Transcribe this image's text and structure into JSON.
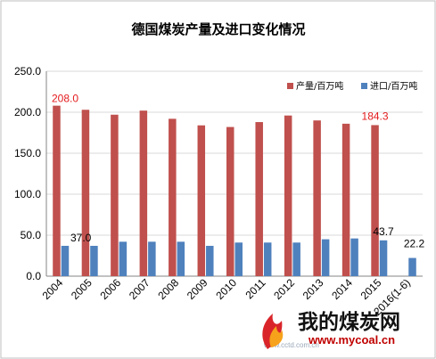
{
  "chart_data": {
    "type": "bar",
    "title": "德国煤炭产量及进口变化情况",
    "categories": [
      "2004",
      "2005",
      "2006",
      "2007",
      "2008",
      "2009",
      "2010",
      "2011",
      "2012",
      "2013",
      "2014",
      "2015",
      "2016(1-6)"
    ],
    "series": [
      {
        "name": "产量/百万吨",
        "color": "#c0504d",
        "values": [
          208.0,
          203.0,
          197.0,
          202.0,
          192.0,
          184.0,
          182.0,
          188.0,
          196.0,
          190.0,
          186.0,
          184.3,
          null
        ]
      },
      {
        "name": "进口/百万吨",
        "color": "#4f81bd",
        "values": [
          37.0,
          37.0,
          42.0,
          42.0,
          42.0,
          37.0,
          41.0,
          41.0,
          41.0,
          45.0,
          46.0,
          43.7,
          22.2
        ]
      }
    ],
    "ylim": [
      0,
      250
    ],
    "yticks": [
      "0.0",
      "50.0",
      "100.0",
      "150.0",
      "200.0",
      "250.0"
    ],
    "grid": true,
    "legend": "top-right",
    "data_labels": [
      {
        "text": "208.0",
        "series": 0,
        "index": 0,
        "color": "#e41a1c"
      },
      {
        "text": "184.3",
        "series": 0,
        "index": 11,
        "color": "#e41a1c"
      },
      {
        "text": "37.0",
        "series": 1,
        "index": 0,
        "color": "#000000"
      },
      {
        "text": "43.7",
        "series": 1,
        "index": 11,
        "color": "#000000"
      },
      {
        "text": "22.2",
        "series": 1,
        "index": 12,
        "color": "#000000"
      }
    ]
  },
  "watermark": {
    "site_name": "我的煤炭网",
    "url": "www.mycoal.cn",
    "faint_text": "www.cctd.com.cn"
  }
}
